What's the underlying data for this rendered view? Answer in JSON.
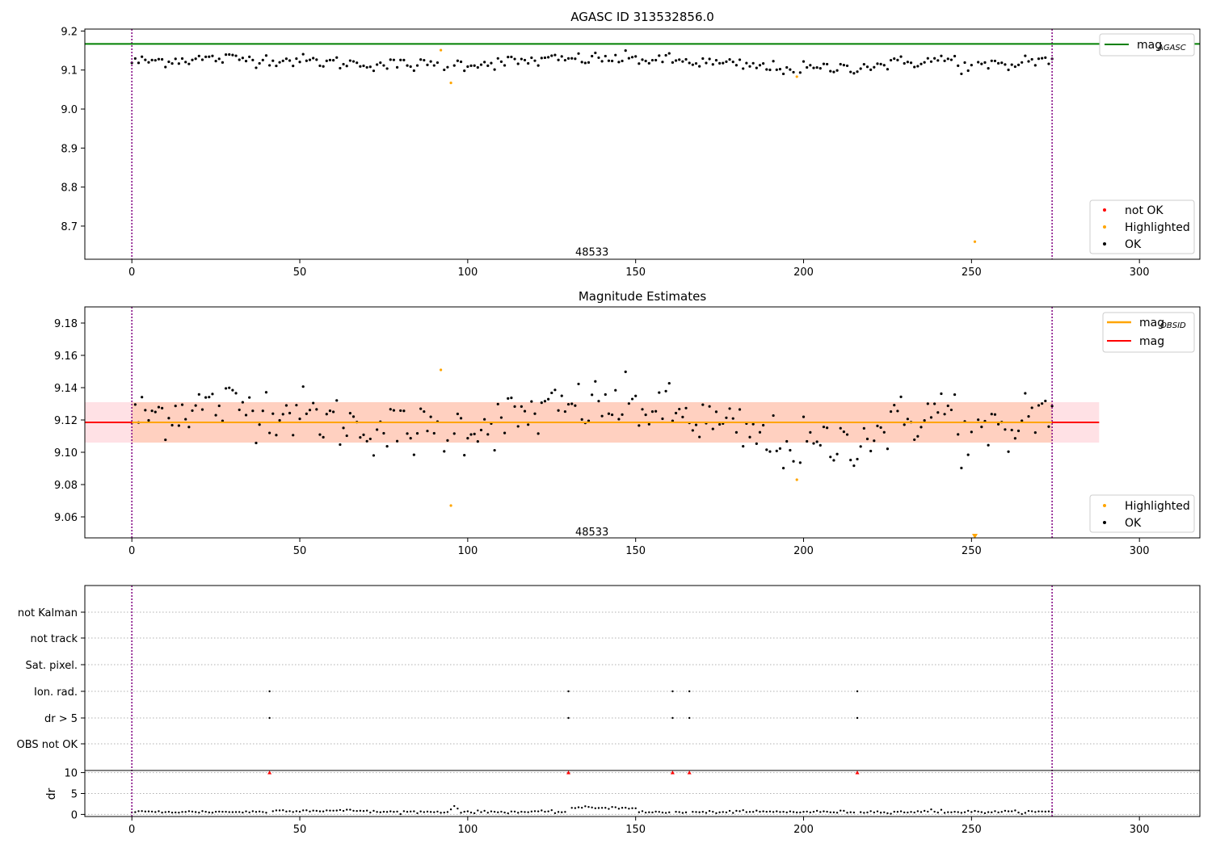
{
  "chart_data": [
    {
      "type": "scatter",
      "title": "AGASC ID 313532856.0",
      "xlim": [
        -14,
        318
      ],
      "ylim": [
        8.615,
        9.205
      ],
      "xticks": [
        0,
        50,
        100,
        150,
        200,
        250,
        300
      ],
      "yticks": [
        8.7,
        8.8,
        8.9,
        9.0,
        9.1,
        9.2
      ],
      "yticklabels": [
        "8.7",
        "8.8",
        "8.9",
        "9.0",
        "9.1",
        "9.2"
      ],
      "hline": {
        "name": "mag",
        "subscript": "AGASC",
        "value": 9.167,
        "color": "#008000"
      },
      "vlines": [
        0,
        274
      ],
      "obsid_label": {
        "text": "48533",
        "x": 137,
        "y": 8.635
      },
      "highlighted": [
        [
          92,
          9.151
        ],
        [
          95,
          9.067
        ],
        [
          198,
          9.083
        ],
        [
          251,
          8.66
        ]
      ],
      "legends": [
        {
          "position": "top-right",
          "entries": [
            {
              "label": "mag",
              "subscript": "AGASC",
              "kind": "line",
              "color": "#008000"
            }
          ]
        },
        {
          "position": "bottom-right",
          "entries": [
            {
              "label": "not OK",
              "kind": "dot",
              "color": "#ff0000"
            },
            {
              "label": "Highlighted",
              "kind": "dot",
              "color": "#ffa500"
            },
            {
              "label": "OK",
              "kind": "dot",
              "color": "#000000"
            }
          ]
        }
      ]
    },
    {
      "type": "scatter",
      "title": "Magnitude Estimates",
      "xlim": [
        -14,
        318
      ],
      "ylim": [
        9.047,
        9.19
      ],
      "xticks": [
        0,
        50,
        100,
        150,
        200,
        250,
        300
      ],
      "yticks": [
        9.06,
        9.08,
        9.1,
        9.12,
        9.14,
        9.16,
        9.18
      ],
      "yticklabels": [
        "9.06",
        "9.08",
        "9.10",
        "9.12",
        "9.14",
        "9.16",
        "9.18"
      ],
      "mag": {
        "value": 9.1185,
        "color": "#ff0000",
        "band": [
          9.106,
          9.131
        ]
      },
      "mag_obsid": {
        "value": 9.1185,
        "color": "#ffa500",
        "band": [
          9.106,
          9.131
        ]
      },
      "band_x": [
        -14,
        288
      ],
      "vlines": [
        0,
        274
      ],
      "obsid_label": {
        "text": "48533",
        "x": 137,
        "y": 9.051
      },
      "highlighted": [
        [
          92,
          9.151
        ],
        [
          95,
          9.067
        ],
        [
          198,
          9.083
        ]
      ],
      "off_scale_marker": {
        "x": 251,
        "y": 9.048,
        "color": "#ffa500"
      },
      "legends": [
        {
          "position": "top-right",
          "entries": [
            {
              "label": "mag",
              "subscript": "OBSID",
              "kind": "line",
              "color": "#ffa500"
            },
            {
              "label": "mag",
              "kind": "line",
              "color": "#ff0000"
            }
          ]
        },
        {
          "position": "bottom-right",
          "entries": [
            {
              "label": "Highlighted",
              "kind": "dot",
              "color": "#ffa500"
            },
            {
              "label": "OK",
              "kind": "dot",
              "color": "#000000"
            }
          ]
        }
      ]
    },
    {
      "type": "scatter",
      "title": "",
      "xlim": [
        -14,
        318
      ],
      "xticks": [
        0,
        50,
        100,
        150,
        200,
        250,
        300
      ],
      "flag_rows": [
        "not Kalman",
        "not track",
        "Sat. pixel.",
        "Ion. rad.",
        "dr > 5",
        "OBS not OK"
      ],
      "flags": {
        "Ion. rad.": [
          41,
          130,
          161,
          166,
          216
        ],
        "dr > 5": [
          41,
          130,
          161,
          166,
          216
        ]
      },
      "dr_panel": {
        "ylabel": "dr",
        "ylim": [
          -0.5,
          10.5
        ],
        "yticks": [
          0,
          5,
          10
        ],
        "outliers": [
          41,
          130,
          161,
          166,
          216
        ],
        "outlier_value": 10,
        "outlier_color": "#ff0000",
        "segments": [
          {
            "range": [
              0,
              40
            ],
            "level": 0.6
          },
          {
            "range": [
              42,
              70
            ],
            "level": 0.9
          },
          {
            "range": [
              71,
              129
            ],
            "level": 0.6
          },
          {
            "range": [
              131,
              150
            ],
            "level": 1.6
          },
          {
            "range": [
              151,
              173
            ],
            "level": 0.5
          },
          {
            "range": [
              174,
              224
            ],
            "level": 0.6
          },
          {
            "range": [
              225,
              274
            ],
            "level": 0.6
          }
        ],
        "bumps": [
          [
            96,
            2.0
          ],
          [
            97,
            1.4
          ],
          [
            95,
            1.2
          ],
          [
            186,
            0.9
          ],
          [
            238,
            1.2
          ],
          [
            241,
            1.1
          ]
        ]
      },
      "vlines": [
        0,
        274
      ]
    }
  ]
}
